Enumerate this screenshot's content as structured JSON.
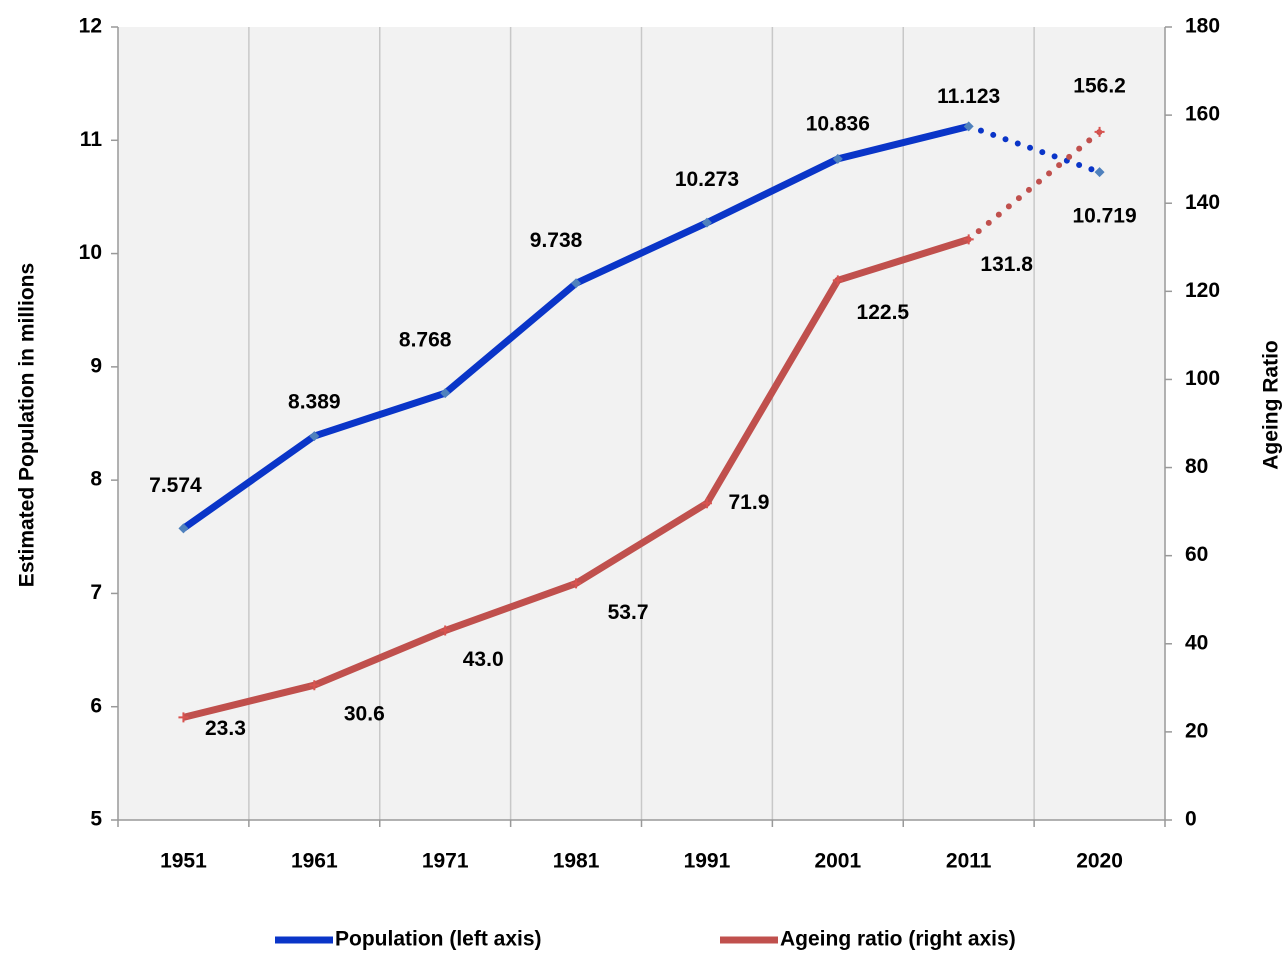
{
  "chart_data": {
    "type": "line",
    "categories": [
      "1951",
      "1961",
      "1971",
      "1981",
      "1991",
      "2001",
      "2011",
      "2020"
    ],
    "series": [
      {
        "name": "Population (left axis)",
        "color": "#0a35c8",
        "values": [
          7.574,
          8.389,
          8.768,
          9.738,
          10.273,
          10.836,
          11.123,
          10.719
        ]
      },
      {
        "name": "Ageing ratio (right axis)",
        "color": "#c0504d",
        "axis": "y2",
        "values": [
          23.3,
          30.6,
          43.0,
          53.7,
          71.9,
          122.5,
          131.8,
          156.2
        ],
        "value_labels": [
          "23.3",
          "30.6",
          "43.0",
          "53.7",
          "71.9",
          "122.5",
          "131.8",
          "156.2"
        ]
      }
    ],
    "ylabel": "Estimated Population in millions",
    "y2label": "Ageing Ratio",
    "ylim": [
      5,
      12
    ],
    "yticks": [
      5,
      6,
      7,
      8,
      9,
      10,
      11,
      12
    ],
    "y2lim": [
      0,
      180
    ],
    "y2ticks": [
      0,
      20,
      40,
      60,
      80,
      100,
      120,
      140,
      160,
      180
    ],
    "grid": true,
    "legend": "bottom"
  }
}
